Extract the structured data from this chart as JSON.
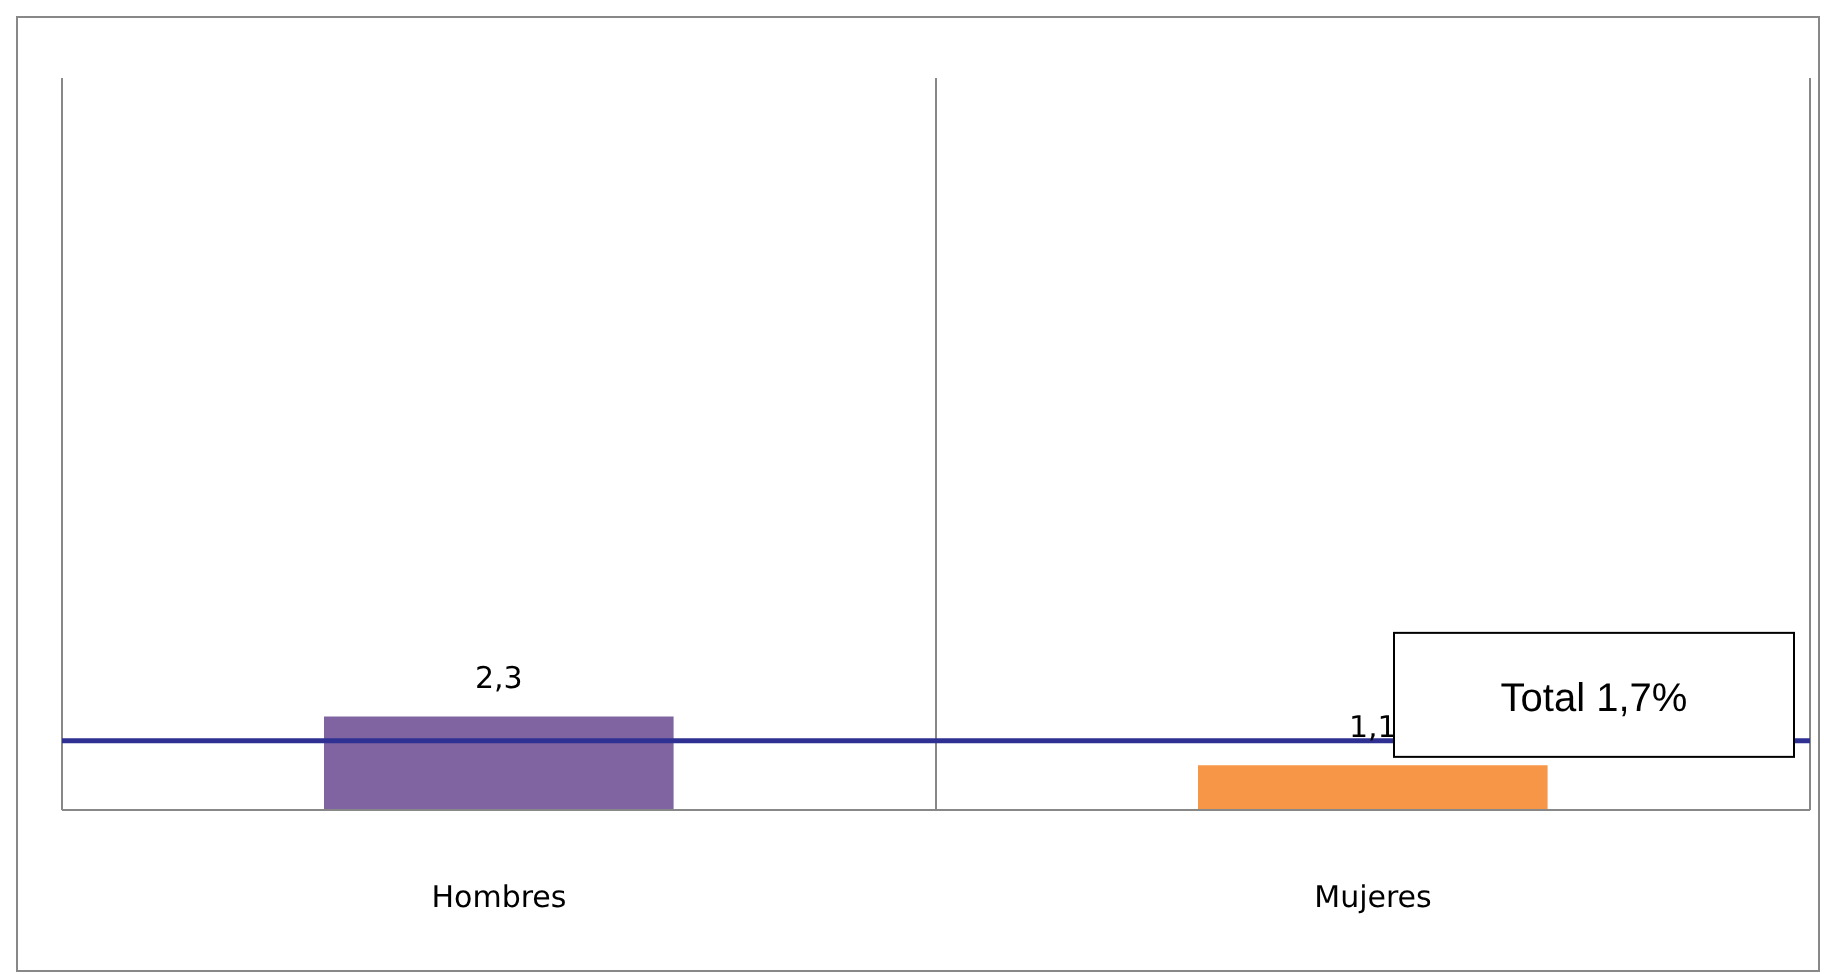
{
  "chart_data": {
    "type": "bar",
    "categories": [
      "Hombres",
      "Mujeres"
    ],
    "values": [
      2.3,
      1.1
    ],
    "colors": [
      "#8064a2",
      "#f79646"
    ],
    "value_labels": [
      "2,3",
      "1,1"
    ],
    "ylim": [
      0,
      18
    ],
    "tick_labels": "x",
    "grid": "x",
    "ref_lines": [
      {
        "axis": "y",
        "value": 1.7,
        "label": "Total 1,7%",
        "color": "#2e3192"
      }
    ]
  }
}
